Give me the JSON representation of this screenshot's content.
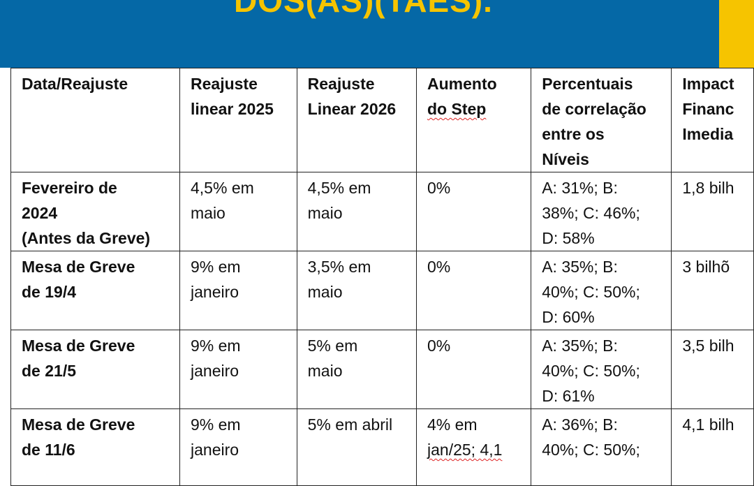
{
  "header": {
    "title": "DOS(AS)(TAES)."
  },
  "table": {
    "header": [
      [
        "Data/Reajuste"
      ],
      [
        "Reajuste",
        "linear 2025"
      ],
      [
        "Reajuste",
        "Linear 2026"
      ],
      [
        "Aumento",
        "do Step"
      ],
      [
        "Percentuais",
        "de correlação",
        "entre os",
        "Níveis"
      ],
      [
        "Impact",
        "Financ",
        "Imedia"
      ]
    ],
    "rows": [
      [
        [
          "Fevereiro de",
          "2024",
          "(Antes da Greve)"
        ],
        [
          "4,5% em",
          "maio"
        ],
        [
          "4,5% em",
          "maio"
        ],
        [
          "0%"
        ],
        [
          "A: 31%; B:",
          "38%; C: 46%;",
          "D: 58%"
        ],
        [
          "1,8 bilh"
        ]
      ],
      [
        [
          "Mesa de Greve",
          "de 19/4"
        ],
        [
          "9% em",
          "janeiro"
        ],
        [
          "3,5% em",
          "maio"
        ],
        [
          "0%"
        ],
        [
          "A: 35%; B:",
          "40%; C: 50%;",
          "D: 60%"
        ],
        [
          "3 bilhõ"
        ]
      ],
      [
        [
          "Mesa de Greve",
          "de 21/5"
        ],
        [
          "9% em",
          "janeiro"
        ],
        [
          "5% em",
          "maio"
        ],
        [
          "0%"
        ],
        [
          "A: 35%; B:",
          "40%; C: 50%;",
          "D: 61%"
        ],
        [
          "3,5 bilh"
        ]
      ],
      [
        [
          "Mesa de Greve",
          "de 11/6"
        ],
        [
          "9% em",
          "janeiro"
        ],
        [
          "5% em abril"
        ],
        [
          "4% em",
          "jan/25; 4,1"
        ],
        [
          "A: 36%; B:",
          "40%; C: 50%;"
        ],
        [
          "4,1 bilh"
        ]
      ]
    ]
  }
}
